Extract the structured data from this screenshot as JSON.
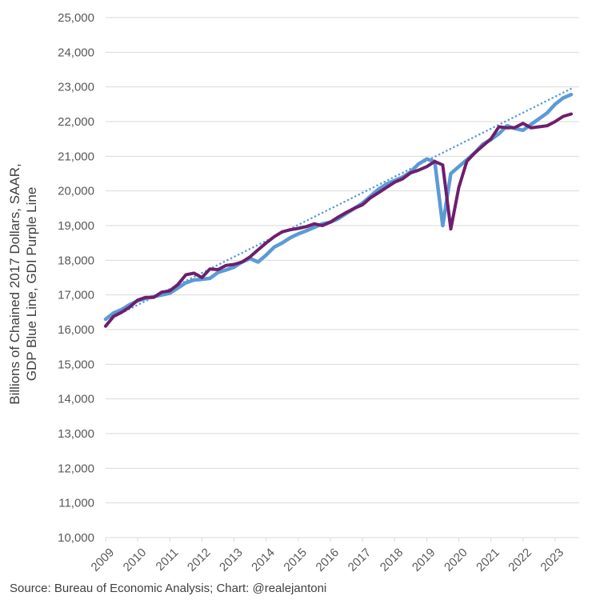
{
  "chart_data": {
    "type": "line",
    "title": "",
    "xlabel": "",
    "ylabel": [
      "Billions of Chained 2017 Dollars, SAAR,",
      "GDP Blue Line, GDI Purple Line"
    ],
    "source": "Source: Bureau of Economic Analysis; Chart: @realejantoni",
    "xlim": [
      2009,
      2023.75
    ],
    "ylim": [
      10000,
      25000
    ],
    "x_ticks": [
      2009,
      2010,
      2011,
      2012,
      2013,
      2014,
      2015,
      2016,
      2017,
      2018,
      2019,
      2020,
      2021,
      2022,
      2023
    ],
    "x_tick_labels": [
      "2009",
      "2010",
      "2011",
      "2012",
      "2013",
      "2014",
      "2015",
      "2016",
      "2017",
      "2018",
      "2019",
      "2020",
      "2021",
      "2022",
      "2023"
    ],
    "y_ticks": [
      10000,
      11000,
      12000,
      13000,
      14000,
      15000,
      16000,
      17000,
      18000,
      19000,
      20000,
      21000,
      22000,
      23000,
      24000,
      25000
    ],
    "y_tick_labels": [
      "10,000",
      "11,000",
      "12,000",
      "13,000",
      "14,000",
      "15,000",
      "16,000",
      "17,000",
      "18,000",
      "19,000",
      "20,000",
      "21,000",
      "22,000",
      "23,000",
      "24,000",
      "25,000"
    ],
    "grid": true,
    "series": [
      {
        "name": "GDP",
        "color": "#5b9bd5",
        "style": "solid",
        "x": [
          2009.0,
          2009.25,
          2009.5,
          2009.75,
          2010.0,
          2010.25,
          2010.5,
          2010.75,
          2011.0,
          2011.25,
          2011.5,
          2011.75,
          2012.0,
          2012.25,
          2012.5,
          2012.75,
          2013.0,
          2013.25,
          2013.5,
          2013.75,
          2014.0,
          2014.25,
          2014.5,
          2014.75,
          2015.0,
          2015.25,
          2015.5,
          2015.75,
          2016.0,
          2016.25,
          2016.5,
          2016.75,
          2017.0,
          2017.25,
          2017.5,
          2017.75,
          2018.0,
          2018.25,
          2018.5,
          2018.75,
          2019.0,
          2019.25,
          2019.5,
          2019.75,
          2020.0,
          2020.25,
          2020.5,
          2020.75,
          2021.0,
          2021.25,
          2021.5,
          2021.75,
          2022.0,
          2022.25,
          2022.5,
          2022.75,
          2023.0,
          2023.25,
          2023.5
        ],
        "y": [
          16300,
          16480,
          16580,
          16720,
          16830,
          16900,
          16950,
          17000,
          17050,
          17200,
          17350,
          17430,
          17450,
          17480,
          17650,
          17720,
          17800,
          17950,
          18050,
          17950,
          18150,
          18380,
          18500,
          18650,
          18760,
          18850,
          18950,
          19050,
          19100,
          19200,
          19350,
          19500,
          19650,
          19850,
          20050,
          20200,
          20300,
          20400,
          20550,
          20780,
          20920,
          20850,
          19000,
          20500,
          20700,
          20900,
          21100,
          21350,
          21480,
          21650,
          21880,
          21800,
          21750,
          21920,
          22080,
          22250,
          22500,
          22680,
          22780
        ]
      },
      {
        "name": "GDI",
        "color": "#6d1f6e",
        "style": "solid",
        "x": [
          2009.0,
          2009.25,
          2009.5,
          2009.75,
          2010.0,
          2010.25,
          2010.5,
          2010.75,
          2011.0,
          2011.25,
          2011.5,
          2011.75,
          2012.0,
          2012.25,
          2012.5,
          2012.75,
          2013.0,
          2013.25,
          2013.5,
          2013.75,
          2014.0,
          2014.25,
          2014.5,
          2014.75,
          2015.0,
          2015.25,
          2015.5,
          2015.75,
          2016.0,
          2016.25,
          2016.5,
          2016.75,
          2017.0,
          2017.25,
          2017.5,
          2017.75,
          2018.0,
          2018.25,
          2018.5,
          2018.75,
          2019.0,
          2019.25,
          2019.5,
          2019.75,
          2020.0,
          2020.25,
          2020.5,
          2020.75,
          2021.0,
          2021.25,
          2021.5,
          2021.75,
          2022.0,
          2022.25,
          2022.5,
          2022.75,
          2023.0,
          2023.25,
          2023.5
        ],
        "y": [
          16100,
          16380,
          16500,
          16650,
          16850,
          16930,
          16930,
          17080,
          17120,
          17300,
          17580,
          17630,
          17500,
          17750,
          17730,
          17850,
          17880,
          17950,
          18100,
          18300,
          18500,
          18680,
          18820,
          18880,
          18920,
          18970,
          19050,
          19000,
          19100,
          19250,
          19380,
          19500,
          19600,
          19800,
          19950,
          20100,
          20250,
          20350,
          20520,
          20600,
          20700,
          20850,
          20750,
          18900,
          20100,
          20850,
          21100,
          21300,
          21500,
          21850,
          21820,
          21830,
          21950,
          21820,
          21850,
          21880,
          22000,
          22150,
          22220
        ]
      },
      {
        "name": "Trend",
        "color": "#5b9bd5",
        "style": "dotted",
        "x": [
          2009.5,
          2023.5
        ],
        "y": [
          16480,
          22950
        ]
      }
    ]
  }
}
